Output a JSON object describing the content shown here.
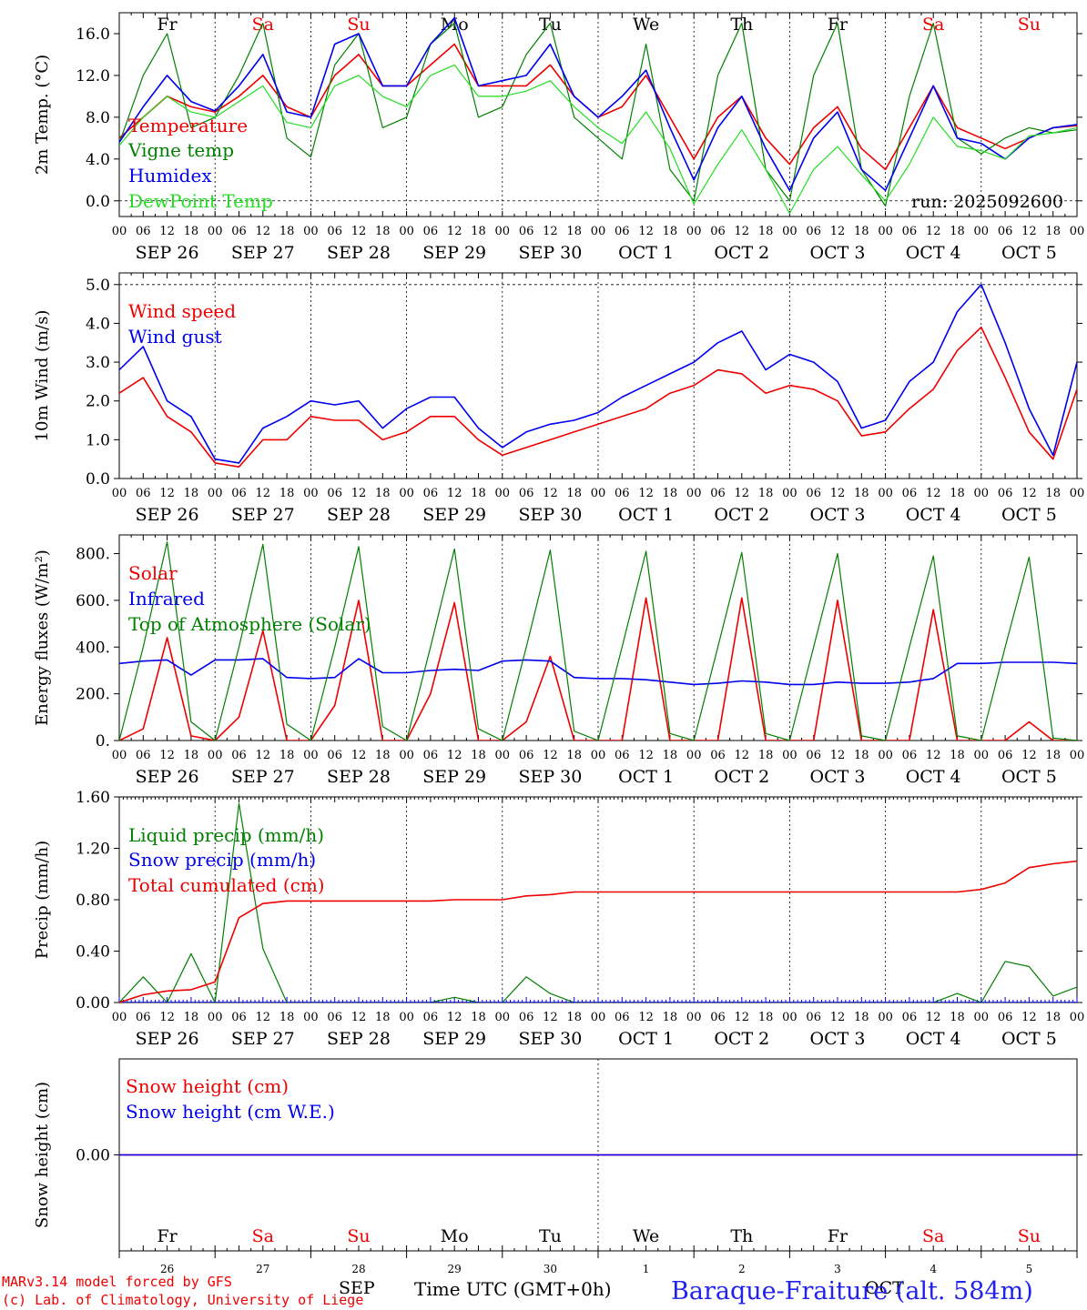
{
  "footer": {
    "model_line": "MARv3.14 model forced by GFS",
    "credit_line": "(c) Lab. of Climatology, University of Liege",
    "month_left": "SEP",
    "month_right": "OCT",
    "time_label": "Time UTC (GMT+0h)",
    "station": "Baraque-Fraiture (alt. 584m)"
  },
  "colors": {
    "red": "#ee0000",
    "blue": "#0000ee",
    "green": "#008000",
    "lightgreen": "#22dd22"
  },
  "axis_common": {
    "hour_ticks": [
      "00",
      "06",
      "12",
      "18"
    ],
    "end_tick": "00",
    "date_labels": [
      "SEP 26",
      "SEP 27",
      "SEP 28",
      "SEP 29",
      "SEP 30",
      "OCT  1",
      "OCT  2",
      "OCT  3",
      "OCT  4",
      "OCT  5"
    ],
    "weekday_labels": [
      "Fr",
      "Sa",
      "Su",
      "Mo",
      "Tu",
      "We",
      "Th",
      "Fr",
      "Sa",
      "Su"
    ],
    "weekday_colors": [
      "black",
      "red",
      "red",
      "black",
      "black",
      "black",
      "black",
      "black",
      "red",
      "red"
    ],
    "day_numbers": [
      "26",
      "27",
      "28",
      "29",
      "30",
      "1",
      "2",
      "3",
      "4",
      "5"
    ]
  },
  "chart_data": [
    {
      "type": "line",
      "ylabel": "2m Temp. (°C)",
      "ylim": [
        -1.5,
        18.0
      ],
      "yticks": [
        "0.0",
        "4.0",
        "8.0",
        "12.0",
        "16.0"
      ],
      "ytick_values": [
        0,
        4,
        8,
        12,
        16
      ],
      "annotation": "run: 2025092600",
      "x_hours": [
        0,
        6,
        12,
        18,
        24,
        30,
        36,
        42,
        48,
        54,
        60,
        66,
        72,
        78,
        84,
        90,
        96,
        102,
        108,
        114,
        120,
        126,
        132,
        138,
        144,
        150,
        156,
        162,
        168,
        174,
        180,
        186,
        192,
        198,
        204,
        210,
        216,
        222,
        228,
        234,
        240
      ],
      "series": [
        {
          "name": "Temperature",
          "color": "red",
          "values": [
            6,
            8,
            10,
            9,
            8.5,
            10,
            12,
            9,
            8,
            12,
            14,
            11,
            11,
            13,
            15,
            11,
            11,
            11,
            13,
            10,
            8,
            9,
            12,
            8,
            4,
            8,
            10,
            6,
            3.5,
            7,
            9,
            5,
            3,
            7,
            11,
            7,
            6,
            5,
            6,
            7,
            7.2
          ]
        },
        {
          "name": "Vigne temp",
          "color": "green",
          "values": [
            5.5,
            12,
            16,
            7,
            8,
            12,
            17,
            6,
            4.2,
            13,
            16,
            7,
            8,
            15,
            17,
            8,
            9,
            14,
            17,
            8,
            6,
            4,
            15,
            3,
            0,
            12,
            17,
            3,
            0,
            12,
            17,
            3,
            -0.5,
            10,
            17,
            6,
            4.5,
            6,
            7,
            6.5,
            6.8
          ]
        },
        {
          "name": "Humidex",
          "color": "blue",
          "values": [
            5.6,
            9,
            12,
            9.5,
            8.6,
            11,
            14,
            8.5,
            8,
            15,
            16,
            11,
            11,
            15,
            17.5,
            11,
            11.5,
            12,
            15,
            10,
            8,
            10,
            12.5,
            7,
            2,
            7,
            10,
            5,
            1,
            6,
            8.5,
            3,
            1,
            6,
            11,
            6,
            5.5,
            4,
            6,
            7,
            7.3
          ]
        },
        {
          "name": "DewPoint Temp",
          "color": "lightgreen",
          "values": [
            5.3,
            8,
            10,
            8.5,
            8,
            9.5,
            11,
            7.5,
            7,
            11,
            12,
            10,
            9,
            12,
            13,
            10,
            10,
            10.5,
            11.5,
            9,
            7,
            5.5,
            8.5,
            5,
            -0.3,
            3.5,
            6.8,
            3,
            -1.2,
            3,
            5.2,
            2.5,
            0,
            3.5,
            8,
            5.2,
            4.8,
            4,
            6.2,
            6.5,
            7
          ]
        }
      ]
    },
    {
      "type": "line",
      "ylabel": "10m Wind (m/s)",
      "ylim": [
        0,
        5.3
      ],
      "yticks": [
        "0.0",
        "1.0",
        "2.0",
        "3.0",
        "4.0",
        "5.0"
      ],
      "ytick_values": [
        0,
        1,
        2,
        3,
        4,
        5
      ],
      "x_hours": [
        0,
        6,
        12,
        18,
        24,
        30,
        36,
        42,
        48,
        54,
        60,
        66,
        72,
        78,
        84,
        90,
        96,
        102,
        108,
        114,
        120,
        126,
        132,
        138,
        144,
        150,
        156,
        162,
        168,
        174,
        180,
        186,
        192,
        198,
        204,
        210,
        216,
        222,
        228,
        234,
        240
      ],
      "series": [
        {
          "name": "Wind speed",
          "color": "red",
          "values": [
            2.2,
            2.6,
            1.6,
            1.2,
            0.4,
            0.3,
            1.0,
            1.0,
            1.6,
            1.5,
            1.5,
            1.0,
            1.2,
            1.6,
            1.6,
            1.0,
            0.6,
            0.8,
            1.0,
            1.2,
            1.4,
            1.6,
            1.8,
            2.2,
            2.4,
            2.8,
            2.7,
            2.2,
            2.4,
            2.3,
            2.0,
            1.1,
            1.2,
            1.8,
            2.3,
            3.3,
            3.9,
            2.6,
            1.2,
            0.5,
            2.3
          ]
        },
        {
          "name": "Wind gust",
          "color": "blue",
          "values": [
            2.8,
            3.4,
            2.0,
            1.6,
            0.5,
            0.4,
            1.3,
            1.6,
            2.0,
            1.9,
            2.0,
            1.3,
            1.8,
            2.1,
            2.1,
            1.3,
            0.8,
            1.2,
            1.4,
            1.5,
            1.7,
            2.1,
            2.4,
            2.7,
            3.0,
            3.5,
            3.8,
            2.8,
            3.2,
            3.0,
            2.5,
            1.3,
            1.5,
            2.5,
            3.0,
            4.3,
            5.0,
            3.5,
            1.8,
            0.6,
            3.0
          ]
        }
      ]
    },
    {
      "type": "line",
      "ylabel": "Energy fluxes (W/m²)",
      "ylim": [
        0,
        880
      ],
      "yticks": [
        "0.",
        "200.",
        "400.",
        "600.",
        "800."
      ],
      "ytick_values": [
        0,
        200,
        400,
        600,
        800
      ],
      "x_hours": [
        0,
        6,
        12,
        18,
        24,
        30,
        36,
        42,
        48,
        54,
        60,
        66,
        72,
        78,
        84,
        90,
        96,
        102,
        108,
        114,
        120,
        126,
        132,
        138,
        144,
        150,
        156,
        162,
        168,
        174,
        180,
        186,
        192,
        198,
        204,
        210,
        216,
        222,
        228,
        234,
        240
      ],
      "series": [
        {
          "name": "Solar",
          "color": "red",
          "values": [
            0,
            50,
            440,
            20,
            0,
            100,
            470,
            0,
            0,
            150,
            600,
            0,
            0,
            200,
            590,
            0,
            0,
            80,
            360,
            0,
            0,
            0,
            610,
            0,
            0,
            0,
            610,
            0,
            0,
            0,
            600,
            0,
            0,
            0,
            560,
            0,
            0,
            0,
            80,
            0,
            0
          ]
        },
        {
          "name": "Infrared",
          "color": "blue",
          "values": [
            330,
            340,
            345,
            280,
            345,
            345,
            350,
            270,
            265,
            270,
            350,
            290,
            290,
            300,
            305,
            300,
            340,
            345,
            340,
            270,
            265,
            265,
            260,
            250,
            240,
            245,
            255,
            250,
            240,
            240,
            250,
            245,
            245,
            250,
            265,
            330,
            330,
            335,
            335,
            335,
            330
          ]
        },
        {
          "name": "Top of Atmosphere (Solar)",
          "color": "green",
          "values": [
            0,
            400,
            850,
            80,
            0,
            400,
            840,
            70,
            0,
            400,
            830,
            60,
            0,
            400,
            820,
            50,
            0,
            400,
            815,
            40,
            0,
            400,
            810,
            30,
            0,
            400,
            805,
            30,
            0,
            400,
            800,
            20,
            0,
            400,
            790,
            20,
            0,
            400,
            785,
            10,
            0
          ]
        }
      ]
    },
    {
      "type": "line",
      "ylabel": "Precip (mm/h)",
      "ylim": [
        0,
        1.6
      ],
      "yticks": [
        "0.00",
        "0.40",
        "0.80",
        "1.20",
        "1.60"
      ],
      "ytick_values": [
        0,
        0.4,
        0.8,
        1.2,
        1.6
      ],
      "x_hours": [
        0,
        6,
        12,
        18,
        24,
        30,
        36,
        42,
        48,
        54,
        60,
        66,
        72,
        78,
        84,
        90,
        96,
        102,
        108,
        114,
        120,
        126,
        132,
        138,
        144,
        150,
        156,
        162,
        168,
        174,
        180,
        186,
        192,
        198,
        204,
        210,
        216,
        222,
        228,
        234,
        240
      ],
      "series": [
        {
          "name": "Liquid precip (mm/h)",
          "color": "green",
          "values": [
            0,
            0.2,
            0,
            0.38,
            0,
            1.55,
            0.42,
            0,
            0,
            0,
            0,
            0,
            0,
            0,
            0.04,
            0,
            0,
            0.2,
            0.07,
            0,
            0,
            0,
            0,
            0,
            0,
            0,
            0,
            0,
            0,
            0,
            0,
            0,
            0,
            0,
            0,
            0.07,
            0,
            0.32,
            0.28,
            0.05,
            0.12
          ]
        },
        {
          "name": "Snow precip (mm/h)",
          "color": "blue",
          "values": [
            0,
            0,
            0,
            0,
            0,
            0,
            0,
            0,
            0,
            0,
            0,
            0,
            0,
            0,
            0,
            0,
            0,
            0,
            0,
            0,
            0,
            0,
            0,
            0,
            0,
            0,
            0,
            0,
            0,
            0,
            0,
            0,
            0,
            0,
            0,
            0,
            0,
            0,
            0,
            0,
            0
          ]
        },
        {
          "name": "Total cumulated (cm)",
          "color": "red",
          "values": [
            0,
            0.06,
            0.09,
            0.1,
            0.16,
            0.66,
            0.77,
            0.79,
            0.79,
            0.79,
            0.79,
            0.79,
            0.79,
            0.79,
            0.8,
            0.8,
            0.8,
            0.83,
            0.84,
            0.86,
            0.86,
            0.86,
            0.86,
            0.86,
            0.86,
            0.86,
            0.86,
            0.86,
            0.86,
            0.86,
            0.86,
            0.86,
            0.86,
            0.86,
            0.86,
            0.86,
            0.88,
            0.93,
            1.05,
            1.08,
            1.1
          ]
        }
      ]
    },
    {
      "type": "line",
      "ylabel": "Snow height (cm)",
      "ylim": [
        -1,
        1
      ],
      "yticks": [
        "0.00"
      ],
      "ytick_values": [
        0
      ],
      "x_hours": [
        0,
        240
      ],
      "series": [
        {
          "name": "Snow height (cm)",
          "color": "red",
          "values": [
            0,
            0
          ]
        },
        {
          "name": "Snow height (cm W.E.)",
          "color": "blue",
          "values": [
            0,
            0
          ]
        }
      ]
    }
  ]
}
